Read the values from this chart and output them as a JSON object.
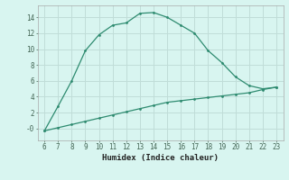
{
  "xlabel": "Humidex (Indice chaleur)",
  "x_main": [
    6,
    7,
    8,
    9,
    10,
    11,
    12,
    13,
    14,
    15,
    16,
    17,
    18,
    19,
    20,
    21,
    22,
    23
  ],
  "y_main": [
    -0.3,
    2.8,
    6.0,
    9.8,
    11.8,
    13.0,
    13.3,
    14.5,
    14.6,
    14.0,
    13.0,
    12.0,
    9.8,
    8.3,
    6.5,
    5.4,
    5.0,
    5.2
  ],
  "x_lower": [
    6,
    7,
    8,
    9,
    10,
    11,
    12,
    13,
    14,
    15,
    16,
    17,
    18,
    19,
    20,
    21,
    22,
    23
  ],
  "y_lower": [
    -0.3,
    0.1,
    0.5,
    0.9,
    1.3,
    1.7,
    2.1,
    2.5,
    2.9,
    3.3,
    3.5,
    3.7,
    3.9,
    4.1,
    4.3,
    4.5,
    4.9,
    5.2
  ],
  "line_color": "#2e8b70",
  "bg_color": "#d8f5f0",
  "grid_color": "#c0ddd8",
  "tick_color": "#446655",
  "ylim": [
    -1.5,
    15.5
  ],
  "xlim": [
    5.5,
    23.5
  ],
  "yticks": [
    0,
    2,
    4,
    6,
    8,
    10,
    12,
    14
  ],
  "xticks": [
    6,
    7,
    8,
    9,
    10,
    11,
    12,
    13,
    14,
    15,
    16,
    17,
    18,
    19,
    20,
    21,
    22,
    23
  ]
}
